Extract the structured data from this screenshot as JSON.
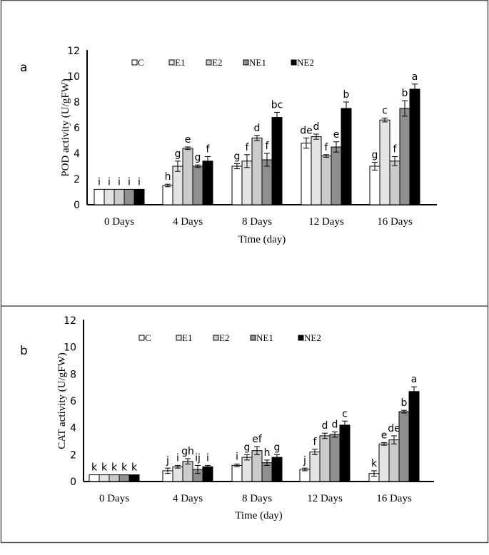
{
  "chart_data": [
    {
      "type": "bar",
      "panel_label": "a",
      "ylabel": "POD activity (U/gFW)",
      "xlabel": "Time (day)",
      "ylim": [
        0,
        12
      ],
      "yticks": [
        "0",
        "2",
        "4",
        "6",
        "8",
        "10",
        "12"
      ],
      "grid": false,
      "legend_placement": "top",
      "categories": [
        "0 Days",
        "4 Days",
        "8 Days",
        "12 Days",
        "16 Days"
      ],
      "series": [
        {
          "name": "C",
          "color": "#ffffff",
          "values": [
            1.2,
            1.5,
            3.0,
            4.8,
            3.0
          ],
          "errors": [
            0,
            0.1,
            0.2,
            0.4,
            0.3
          ],
          "letters": [
            "i",
            "h",
            "g",
            "de",
            "g"
          ]
        },
        {
          "name": "E1",
          "color": "#e4e4e4",
          "values": [
            1.2,
            3.0,
            3.4,
            5.3,
            6.6
          ],
          "errors": [
            0,
            0.4,
            0.5,
            0.2,
            0.15
          ],
          "letters": [
            "i",
            "g",
            "f",
            "d",
            "c"
          ]
        },
        {
          "name": "E2",
          "color": "#cbcbcb",
          "values": [
            1.2,
            4.4,
            5.2,
            3.8,
            3.4
          ],
          "errors": [
            0,
            0.1,
            0.2,
            0.1,
            0.35
          ],
          "letters": [
            "i",
            "e",
            "d",
            "f",
            "f"
          ]
        },
        {
          "name": "NE1",
          "color": "#8f8f8f",
          "values": [
            1.2,
            3.0,
            3.5,
            4.5,
            7.5
          ],
          "errors": [
            0,
            0.1,
            0.5,
            0.4,
            0.6
          ],
          "letters": [
            "i",
            "g",
            "f",
            "e",
            "b"
          ]
        },
        {
          "name": "NE2",
          "color": "#000000",
          "values": [
            1.2,
            3.4,
            6.8,
            7.5,
            9.0
          ],
          "errors": [
            0,
            0.35,
            0.4,
            0.5,
            0.4
          ],
          "letters": [
            "i",
            "f",
            "bc",
            "b",
            "a"
          ]
        }
      ]
    },
    {
      "type": "bar",
      "panel_label": "b",
      "ylabel": "CAT activity (U/gFW)",
      "xlabel": "Time (day)",
      "ylim": [
        0,
        12
      ],
      "yticks": [
        "0",
        "2",
        "4",
        "6",
        "8",
        "10",
        "12"
      ],
      "grid": false,
      "legend_placement": "top",
      "categories": [
        "0 Days",
        "4 Days",
        "8 Days",
        "12 Days",
        "16 Days"
      ],
      "series": [
        {
          "name": "C",
          "color": "#ffffff",
          "values": [
            0.5,
            0.8,
            1.2,
            0.9,
            0.6
          ],
          "errors": [
            0,
            0.2,
            0.1,
            0.1,
            0.2
          ],
          "letters": [
            "k",
            "j",
            "i",
            "j",
            "k"
          ]
        },
        {
          "name": "E1",
          "color": "#e4e4e4",
          "values": [
            0.5,
            1.1,
            1.8,
            2.2,
            2.8
          ],
          "errors": [
            0,
            0.1,
            0.2,
            0.2,
            0.1
          ],
          "letters": [
            "k",
            "i",
            "g",
            "f",
            "e"
          ]
        },
        {
          "name": "E2",
          "color": "#cbcbcb",
          "values": [
            0.5,
            1.5,
            2.3,
            3.4,
            3.1
          ],
          "errors": [
            0,
            0.2,
            0.3,
            0.2,
            0.3
          ],
          "letters": [
            "k",
            "gh",
            "ef",
            "d",
            "de"
          ]
        },
        {
          "name": "NE1",
          "color": "#8f8f8f",
          "values": [
            0.5,
            0.9,
            1.4,
            3.5,
            5.2
          ],
          "errors": [
            0,
            0.3,
            0.2,
            0.2,
            0.1
          ],
          "letters": [
            "k",
            "ij",
            "h",
            "d",
            "b"
          ]
        },
        {
          "name": "NE2",
          "color": "#000000",
          "values": [
            0.5,
            1.1,
            1.8,
            4.2,
            6.7
          ],
          "errors": [
            0,
            0.1,
            0.2,
            0.3,
            0.35
          ],
          "letters": [
            "k",
            "i",
            "g",
            "c",
            "a"
          ]
        }
      ]
    }
  ]
}
